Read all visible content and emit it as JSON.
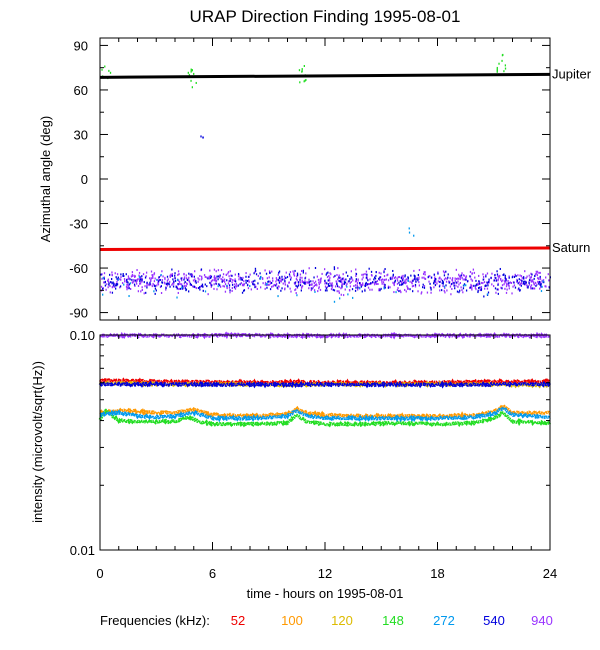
{
  "chart_data": [
    {
      "type": "scatter",
      "title": "URAP Direction Finding  1995-08-01",
      "ylabel": "Azimuthal angle (deg)",
      "xlabel": "",
      "xlim": [
        0,
        24
      ],
      "ylim": [
        -95,
        95
      ],
      "yticks": [
        {
          "value": 90,
          "label": "90"
        },
        {
          "value": 60,
          "label": "60"
        },
        {
          "value": 30,
          "label": "30"
        },
        {
          "value": 0,
          "label": "0"
        },
        {
          "value": -30,
          "label": "-30"
        },
        {
          "value": -60,
          "label": "-60"
        },
        {
          "value": -90,
          "label": "-90"
        }
      ],
      "reference_lines": [
        {
          "name": "Jupiter",
          "color": "#000000",
          "x": [
            0,
            24
          ],
          "y": [
            68.5,
            70.5
          ]
        },
        {
          "name": "Saturn",
          "color": "#ee0000",
          "x": [
            0,
            24
          ],
          "y": [
            -47.5,
            -46.5
          ]
        }
      ],
      "scatter_clusters": [
        {
          "color": "#9933ff",
          "x_range": [
            0,
            24
          ],
          "y_range": [
            -79,
            -58
          ],
          "n": 900
        },
        {
          "color": "#0000dd",
          "x_range": [
            0,
            24
          ],
          "y_range": [
            -80,
            -57
          ],
          "n": 450
        },
        {
          "color": "#0099ee",
          "x_range": [
            0,
            24
          ],
          "y_range": [
            -88,
            -56
          ],
          "n": 40
        },
        {
          "color": "#22dd22",
          "x": 0.3,
          "y_range": [
            68,
            78
          ],
          "n": 8
        },
        {
          "color": "#22dd22",
          "x": 4.9,
          "y_range": [
            62,
            75
          ],
          "n": 10
        },
        {
          "color": "#22dd22",
          "x": 10.7,
          "y_range": [
            60,
            82
          ],
          "n": 10
        },
        {
          "color": "#22dd22",
          "x": 21.4,
          "y_range": [
            66,
            90
          ],
          "n": 12
        },
        {
          "color": "#0000dd",
          "x": 5.3,
          "y_range": [
            28,
            38
          ],
          "n": 3
        },
        {
          "color": "#0099ee",
          "x": 16.6,
          "y_range": [
            -40,
            -32
          ],
          "n": 3
        }
      ]
    },
    {
      "type": "line",
      "ylabel": "intensity (microvolt/sqrt(Hz))",
      "xlabel": "time - hours on 1995-08-01",
      "xlim": [
        0,
        24
      ],
      "ylim": [
        0.01,
        0.1
      ],
      "yscale": "log",
      "xticks": [
        0,
        6,
        12,
        18,
        24
      ],
      "yticks": [
        {
          "value": 0.1,
          "label": "0.10"
        },
        {
          "value": 0.01,
          "label": "0.01"
        }
      ],
      "series": [
        {
          "name": "52",
          "color": "#ee0000",
          "x": [
            0,
            2,
            4,
            6,
            8,
            10,
            12,
            14,
            16,
            18,
            20,
            22,
            24
          ],
          "y": [
            0.0615,
            0.061,
            0.0605,
            0.0605,
            0.06,
            0.0605,
            0.06,
            0.06,
            0.06,
            0.06,
            0.0605,
            0.0605,
            0.061
          ]
        },
        {
          "name": "100",
          "color": "#ff9900",
          "x": [
            0,
            1,
            2,
            3,
            4,
            5,
            6,
            8,
            10,
            10.5,
            11,
            12,
            14,
            16,
            18,
            20,
            21,
            21.5,
            22,
            24
          ],
          "y": [
            0.0435,
            0.0445,
            0.044,
            0.0435,
            0.0435,
            0.045,
            0.0425,
            0.042,
            0.043,
            0.0455,
            0.0435,
            0.0425,
            0.042,
            0.042,
            0.042,
            0.0425,
            0.044,
            0.0465,
            0.0435,
            0.0435
          ]
        },
        {
          "name": "120",
          "color": "#ddbb00",
          "x": [
            0,
            2,
            4,
            6,
            8,
            10,
            12,
            14,
            16,
            18,
            20,
            22,
            24
          ],
          "y": [
            0.0595,
            0.0595,
            0.059,
            0.059,
            0.059,
            0.0585,
            0.059,
            0.059,
            0.059,
            0.059,
            0.059,
            0.0585,
            0.0585
          ]
        },
        {
          "name": "148",
          "color": "#22dd22",
          "x": [
            0,
            0.3,
            1,
            2,
            3,
            4,
            4.7,
            5.3,
            6,
            8,
            10,
            10.5,
            11,
            12,
            14,
            16,
            18,
            20,
            21,
            21.5,
            22,
            24
          ],
          "y": [
            0.0405,
            0.0445,
            0.04,
            0.0395,
            0.0395,
            0.0395,
            0.0415,
            0.0395,
            0.0385,
            0.0385,
            0.039,
            0.0425,
            0.0395,
            0.0385,
            0.0385,
            0.039,
            0.0385,
            0.039,
            0.041,
            0.0435,
            0.0395,
            0.039
          ]
        },
        {
          "name": "272",
          "color": "#0099ee",
          "x": [
            0,
            1,
            2,
            3,
            4,
            5,
            6,
            8,
            10,
            10.5,
            11,
            12,
            14,
            16,
            18,
            20,
            21,
            21.5,
            22,
            24
          ],
          "y": [
            0.0425,
            0.0435,
            0.042,
            0.0415,
            0.042,
            0.0435,
            0.041,
            0.041,
            0.042,
            0.0445,
            0.042,
            0.0412,
            0.041,
            0.041,
            0.041,
            0.0415,
            0.043,
            0.0458,
            0.0425,
            0.0415
          ]
        },
        {
          "name": "540",
          "color": "#0000dd",
          "x": [
            0,
            2,
            4,
            6,
            8,
            10,
            12,
            14,
            16,
            18,
            20,
            22,
            24
          ],
          "y": [
            0.059,
            0.059,
            0.059,
            0.0588,
            0.0588,
            0.0588,
            0.0588,
            0.0588,
            0.0588,
            0.0588,
            0.0588,
            0.059,
            0.059
          ]
        },
        {
          "name": "940",
          "color": "#9933ff",
          "x": [
            0,
            2,
            4,
            6,
            7,
            8,
            10,
            12,
            14,
            16,
            18,
            20,
            22,
            24
          ],
          "y": [
            0.0993,
            0.0993,
            0.0993,
            0.0995,
            0.1003,
            0.0995,
            0.0993,
            0.0993,
            0.0993,
            0.0993,
            0.0993,
            0.0993,
            0.0993,
            0.0993
          ]
        }
      ]
    }
  ],
  "legend": {
    "label": "Frequencies (kHz):",
    "items": [
      {
        "text": "52",
        "color": "#ee0000"
      },
      {
        "text": "100",
        "color": "#ff9900"
      },
      {
        "text": "120",
        "color": "#ddbb00"
      },
      {
        "text": "148",
        "color": "#22dd22"
      },
      {
        "text": "272",
        "color": "#0099ee"
      },
      {
        "text": "540",
        "color": "#0000dd"
      },
      {
        "text": "940",
        "color": "#9933ff"
      }
    ]
  }
}
